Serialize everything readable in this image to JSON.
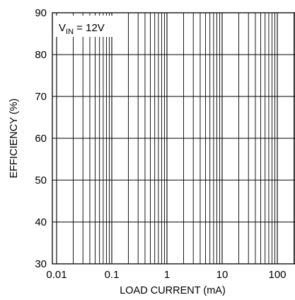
{
  "chart_data": {
    "type": "line",
    "x_scale": "log",
    "xlim": [
      0.01,
      100
    ],
    "ylim": [
      30,
      90
    ],
    "grid": true,
    "xlabel": "LOAD CURRENT (mA)",
    "ylabel": "EFFICIENCY (%)",
    "x_ticks": [
      {
        "value": 0.01,
        "label": "0.01"
      },
      {
        "value": 0.1,
        "label": "0.1"
      },
      {
        "value": 1,
        "label": "1"
      },
      {
        "value": 10,
        "label": "10"
      },
      {
        "value": 100,
        "label": "100"
      }
    ],
    "y_ticks": [
      {
        "value": 30,
        "label": "30"
      },
      {
        "value": 40,
        "label": "40"
      },
      {
        "value": 50,
        "label": "50"
      },
      {
        "value": 60,
        "label": "60"
      },
      {
        "value": 70,
        "label": "70"
      },
      {
        "value": 80,
        "label": "80"
      },
      {
        "value": 90,
        "label": "90"
      }
    ],
    "annotation": {
      "main": "V",
      "sub": "IN",
      "rest": " = 12V"
    },
    "series": []
  }
}
